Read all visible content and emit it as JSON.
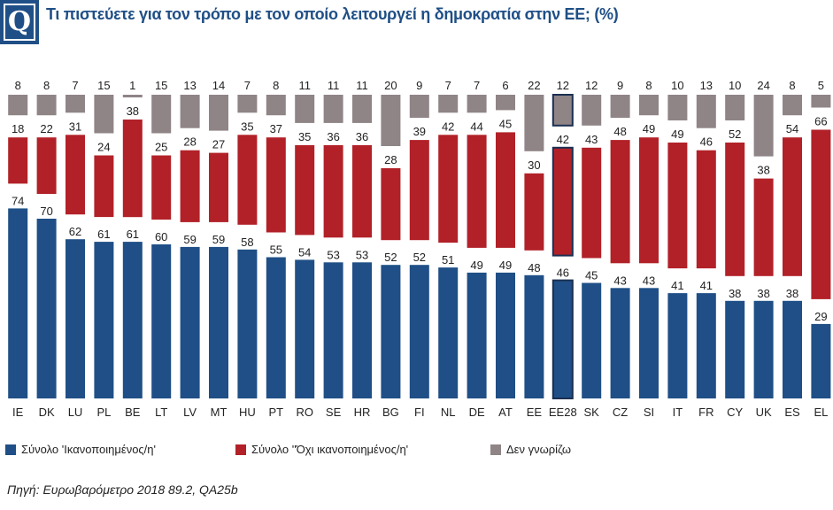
{
  "title": "Τι πιστεύετε για τον τρόπο με τον οποίο λειτουργεί η δημοκρατία στην ΕΕ; (%)",
  "badge": "Q",
  "source": "Πηγή: Ευρωβαρόμετρο 2018 89.2, QA25b",
  "legend": [
    {
      "label": "Σύνολο 'Ικανοποιημένος/η'",
      "color": "#1f4f86"
    },
    {
      "label": "Σύνολο ''Όχι ικανοποιημένος/η'",
      "color": "#b22128"
    },
    {
      "label": "Δεν γνωρίζω",
      "color": "#8f8486"
    }
  ],
  "chart_data": {
    "type": "bar",
    "stacked_layout": "separate_segments",
    "highlight_category": "EE28",
    "categories": [
      "IE",
      "DK",
      "LU",
      "PL",
      "BE",
      "LT",
      "LV",
      "MT",
      "HU",
      "PT",
      "RO",
      "SE",
      "HR",
      "BG",
      "FI",
      "NL",
      "DE",
      "AT",
      "EE",
      "EE28",
      "SK",
      "CZ",
      "SI",
      "IT",
      "FR",
      "CY",
      "UK",
      "ES",
      "EL"
    ],
    "series": [
      {
        "name": "Σύνολο 'Ικανοποιημένος/η'",
        "color": "#1f4f86",
        "values": [
          74,
          70,
          62,
          61,
          61,
          60,
          59,
          59,
          58,
          55,
          54,
          53,
          53,
          52,
          52,
          51,
          49,
          49,
          48,
          46,
          45,
          43,
          43,
          41,
          41,
          38,
          38,
          38,
          29
        ]
      },
      {
        "name": "Σύνολο ''Όχι ικανοποιημένος/η'",
        "color": "#b22128",
        "values": [
          18,
          22,
          31,
          24,
          38,
          25,
          28,
          27,
          35,
          37,
          35,
          36,
          36,
          28,
          39,
          42,
          44,
          45,
          30,
          42,
          43,
          48,
          49,
          49,
          46,
          52,
          38,
          54,
          66
        ]
      },
      {
        "name": "Δεν γνωρίζω",
        "color": "#8f8486",
        "values": [
          8,
          8,
          7,
          15,
          1,
          15,
          13,
          14,
          7,
          8,
          11,
          11,
          11,
          20,
          9,
          7,
          7,
          6,
          22,
          12,
          12,
          9,
          8,
          10,
          13,
          10,
          24,
          8,
          5
        ]
      }
    ],
    "xlabel": "",
    "ylabel": ""
  }
}
